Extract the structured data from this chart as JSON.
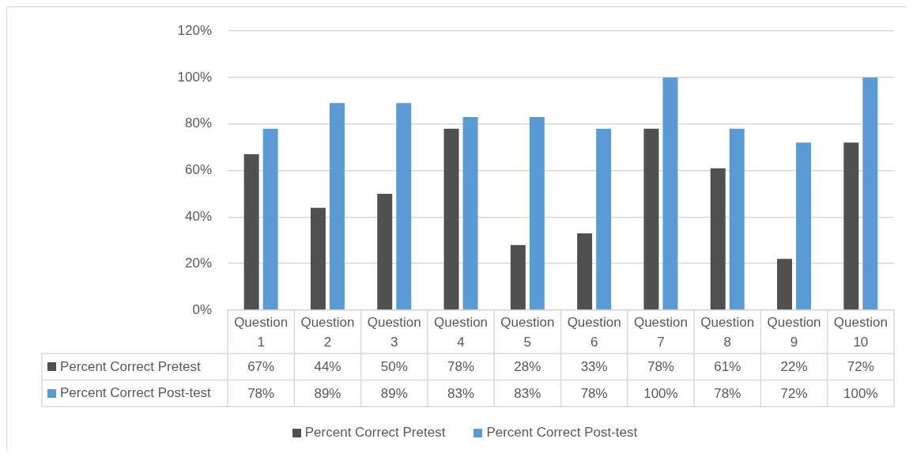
{
  "chart_data": {
    "type": "bar",
    "categories": [
      "Question 1",
      "Question 2",
      "Question 3",
      "Question 4",
      "Question 5",
      "Question 6",
      "Question 7",
      "Question 8",
      "Question 9",
      "Question 10"
    ],
    "series": [
      {
        "name": "Percent Correct Pretest",
        "color": "#505050",
        "values": [
          67,
          44,
          50,
          78,
          28,
          33,
          78,
          61,
          22,
          72
        ],
        "value_labels": [
          "67%",
          "44%",
          "50%",
          "78%",
          "28%",
          "33%",
          "78%",
          "61%",
          "22%",
          "72%"
        ]
      },
      {
        "name": "Percent Correct Post-test",
        "color": "#5b9bd5",
        "values": [
          78,
          89,
          89,
          83,
          83,
          78,
          100,
          78,
          72,
          100
        ],
        "value_labels": [
          "78%",
          "89%",
          "89%",
          "83%",
          "83%",
          "78%",
          "100%",
          "78%",
          "72%",
          "100%"
        ]
      }
    ],
    "ylim": [
      0,
      120
    ],
    "yticks": [
      {
        "value": 0,
        "label": "0%"
      },
      {
        "value": 20,
        "label": "20%"
      },
      {
        "value": 40,
        "label": "40%"
      },
      {
        "value": 60,
        "label": "60%"
      },
      {
        "value": 80,
        "label": "80%"
      },
      {
        "value": 100,
        "label": "100%"
      },
      {
        "value": 120,
        "label": "120%"
      }
    ],
    "grid": "y",
    "legend": "bottom",
    "data_labels": true
  }
}
